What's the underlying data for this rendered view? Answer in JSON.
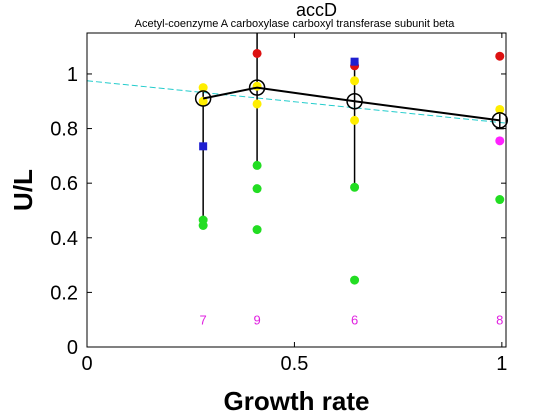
{
  "chart_data": {
    "type": "scatter",
    "title": "accD",
    "subtitle": "Acetyl-coenzyme A carboxylase carboxyl transferase subunit beta",
    "xlabel": "Growth rate",
    "ylabel": "U/L",
    "xlim": [
      0,
      1.01
    ],
    "ylim": [
      0,
      1.15
    ],
    "xticks": [
      0,
      0.5,
      1
    ],
    "xtick_labels": [
      "0",
      "0.5",
      "1"
    ],
    "yticks": [
      0,
      0.2,
      0.4,
      0.6,
      0.8,
      1
    ],
    "ytick_labels": [
      "0",
      "0.2",
      "0.4",
      "0.6",
      "0.8",
      "1"
    ],
    "grid": false,
    "counts_color": "#e020e0",
    "groups": [
      {
        "x": 0.28,
        "mean": 0.91,
        "err_low": 0.47,
        "err_high": 0.95,
        "count": "7"
      },
      {
        "x": 0.41,
        "mean": 0.95,
        "err_low": 0.66,
        "err_high": 1.15,
        "count": "9"
      },
      {
        "x": 0.645,
        "mean": 0.9,
        "err_low": 0.59,
        "err_high": 1.04,
        "count": "6"
      },
      {
        "x": 0.995,
        "mean": 0.83,
        "err_low": 0.8,
        "err_high": 0.87,
        "count": "8"
      }
    ],
    "points": [
      {
        "x": 0.28,
        "y": 0.95,
        "color": "#ffee00",
        "shape": "circle"
      },
      {
        "x": 0.28,
        "y": 0.9,
        "color": "#ffee00",
        "shape": "circle"
      },
      {
        "x": 0.28,
        "y": 0.735,
        "color": "#1f1fd0",
        "shape": "square"
      },
      {
        "x": 0.28,
        "y": 0.465,
        "color": "#22dd22",
        "shape": "circle"
      },
      {
        "x": 0.28,
        "y": 0.445,
        "color": "#22dd22",
        "shape": "circle"
      },
      {
        "x": 0.41,
        "y": 1.075,
        "color": "#dd1111",
        "shape": "circle"
      },
      {
        "x": 0.41,
        "y": 0.955,
        "color": "#ffee00",
        "shape": "circle"
      },
      {
        "x": 0.41,
        "y": 0.89,
        "color": "#ffee00",
        "shape": "circle"
      },
      {
        "x": 0.41,
        "y": 0.665,
        "color": "#22dd22",
        "shape": "circle"
      },
      {
        "x": 0.41,
        "y": 0.58,
        "color": "#22dd22",
        "shape": "circle"
      },
      {
        "x": 0.41,
        "y": 0.43,
        "color": "#22dd22",
        "shape": "circle"
      },
      {
        "x": 0.645,
        "y": 1.03,
        "color": "#dd1111",
        "shape": "circle"
      },
      {
        "x": 0.645,
        "y": 1.045,
        "color": "#1f1fd0",
        "shape": "square"
      },
      {
        "x": 0.645,
        "y": 0.975,
        "color": "#ffee00",
        "shape": "circle"
      },
      {
        "x": 0.645,
        "y": 0.83,
        "color": "#ffee00",
        "shape": "circle"
      },
      {
        "x": 0.645,
        "y": 0.585,
        "color": "#22dd22",
        "shape": "circle"
      },
      {
        "x": 0.645,
        "y": 0.245,
        "color": "#22dd22",
        "shape": "circle"
      },
      {
        "x": 0.995,
        "y": 1.065,
        "color": "#dd1111",
        "shape": "circle"
      },
      {
        "x": 0.995,
        "y": 0.87,
        "color": "#ffee00",
        "shape": "circle"
      },
      {
        "x": 0.995,
        "y": 0.755,
        "color": "#ff22ff",
        "shape": "circle"
      },
      {
        "x": 0.995,
        "y": 0.54,
        "color": "#22dd22",
        "shape": "circle"
      }
    ],
    "fit_line": {
      "x": [
        0,
        1.01
      ],
      "y": [
        0.975,
        0.82
      ],
      "color": "#22cccc",
      "style": "dashed"
    }
  }
}
